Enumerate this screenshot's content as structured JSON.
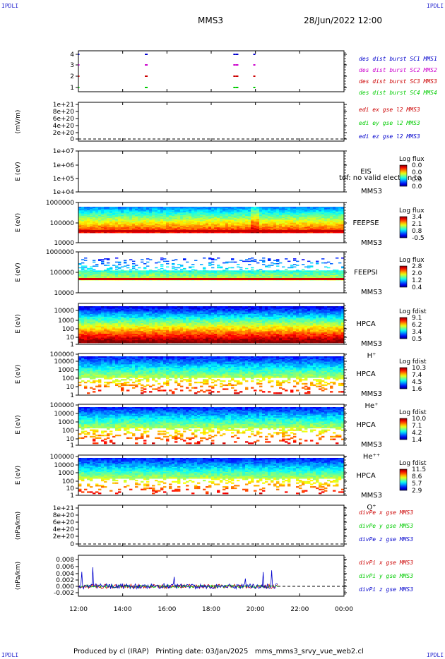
{
  "corner_text": "IPDLI",
  "header": {
    "title": "MMS3",
    "date": "28/Jun/2022 12:00"
  },
  "footer": "Produced by cl (IRAP)   Printing date: 03/Jan/2025   mms_mms3_srvy_vue_web2.cl",
  "x_axis": {
    "ticks": [
      "12:00",
      "14:00",
      "16:00",
      "18:00",
      "20:00",
      "22:00",
      "00:00"
    ]
  },
  "colors": {
    "blue": "#0000cc",
    "magenta": "#cc00cc",
    "red": "#cc0000",
    "green": "#00cc00"
  },
  "panels": [
    {
      "id": "des-dist",
      "ylabel": "",
      "yticks": [
        "4",
        "3",
        "2",
        "1"
      ],
      "legend": [
        {
          "text": "des dist burst SC1 MMS1",
          "color": "blue"
        },
        {
          "text": "des dist burst SC2 MMS2",
          "color": "magenta"
        },
        {
          "text": "des dist burst SC3 MMS3",
          "color": "red"
        },
        {
          "text": "des dist burst SC4 MMS4",
          "color": "green"
        }
      ]
    },
    {
      "id": "edi",
      "ylabel": "(mV/m)",
      "yticks": [
        "1e+21",
        "8e+20",
        "6e+20",
        "4e+20",
        "2e+20",
        "0"
      ],
      "legend": [
        {
          "text": "edi ex gse l2 MMS3",
          "color": "red"
        },
        {
          "text": "edi ey gse l2 MMS3",
          "color": "green"
        },
        {
          "text": "edi ez gse l2 MMS3",
          "color": "blue"
        }
      ]
    },
    {
      "id": "eis",
      "ylabel": "E (eV)",
      "yticks": [
        "1e+07",
        "1e+06",
        "1e+05",
        "1e+04"
      ],
      "instrument": [
        "EIS",
        "MMS3"
      ],
      "overlay": "tof: no valid electron to",
      "cb_title": "Log flux",
      "cb_ticks": [
        "0.0",
        "0.0",
        "0.0",
        "0.0"
      ]
    },
    {
      "id": "feepse",
      "ylabel": "E (eV)",
      "yticks": [
        "1000000",
        "100000",
        "10000"
      ],
      "instrument": [
        "FEEPSE",
        "MMS3"
      ],
      "cb_title": "Log flux",
      "cb_ticks": [
        "3.4",
        "2.1",
        "0.8",
        "-0.5"
      ]
    },
    {
      "id": "feepsi",
      "ylabel": "E (eV)",
      "yticks": [
        "1000000",
        "100000",
        "10000"
      ],
      "instrument": [
        "FEEPSI",
        "MMS3"
      ],
      "cb_title": "Log flux",
      "cb_ticks": [
        "2.8",
        "2.0",
        "1.2",
        "0.4"
      ]
    },
    {
      "id": "hpca-h",
      "ylabel": "E (eV)",
      "yticks": [
        "10000",
        "1000",
        "100",
        "10",
        "1"
      ],
      "instrument": [
        "HPCA",
        "MMS3"
      ],
      "species": "H⁺",
      "cb_title": "Log fdist",
      "cb_ticks": [
        "9.1",
        "6.2",
        "3.4",
        "0.5"
      ]
    },
    {
      "id": "hpca-he",
      "ylabel": "E (eV)",
      "yticks": [
        "100000",
        "10000",
        "1000",
        "100",
        "10",
        "1"
      ],
      "instrument": [
        "HPCA",
        "MMS3"
      ],
      "species": "He⁺",
      "cb_title": "Log fdist",
      "cb_ticks": [
        "10.3",
        "7.4",
        "4.5",
        "1.6"
      ]
    },
    {
      "id": "hpca-hepp",
      "ylabel": "E (eV)",
      "yticks": [
        "100000",
        "10000",
        "1000",
        "100",
        "10",
        "1"
      ],
      "instrument": [
        "HPCA",
        "MMS3"
      ],
      "species": "He⁺⁺",
      "cb_title": "Log fdist",
      "cb_ticks": [
        "10.0",
        "7.1",
        "4.2",
        "1.4"
      ]
    },
    {
      "id": "hpca-o",
      "ylabel": "E (eV)",
      "yticks": [
        "100000",
        "10000",
        "1000",
        "100",
        "10",
        "1"
      ],
      "instrument": [
        "HPCA",
        "MMS3"
      ],
      "species": "O⁺",
      "cb_title": "Log fdist",
      "cb_ticks": [
        "11.5",
        "8.6",
        "5.7",
        "2.9"
      ]
    },
    {
      "id": "divpe",
      "ylabel": "(nPa/km)",
      "yticks": [
        "1e+21",
        "8e+20",
        "6e+20",
        "4e+20",
        "2e+20",
        "0"
      ],
      "legend": [
        {
          "text": "divPe x gse MMS3",
          "color": "red"
        },
        {
          "text": "divPe y gse MMS3",
          "color": "green"
        },
        {
          "text": "divPe z gse MMS3",
          "color": "blue"
        }
      ]
    },
    {
      "id": "divpi",
      "ylabel": "(nPa/km)",
      "yticks": [
        "0.008",
        "0.006",
        "0.004",
        "0.002",
        "0.000",
        "-0.002"
      ],
      "legend": [
        {
          "text": "divPi x gse MMS3",
          "color": "red"
        },
        {
          "text": "divPi y gse MMS3",
          "color": "green"
        },
        {
          "text": "divPi z gse MMS3",
          "color": "blue"
        }
      ]
    }
  ],
  "chart_data": {
    "type": "heatmap",
    "x_range": [
      "12:00",
      "00:00"
    ],
    "burst_intervals": [
      {
        "sc": 1,
        "hours": [
          15.0,
          19.0,
          19.1,
          19.9
        ]
      },
      {
        "sc": 2,
        "hours": [
          15.0,
          19.0,
          19.1,
          19.9
        ]
      },
      {
        "sc": 3,
        "hours": [
          15.0,
          19.0,
          19.1,
          19.9
        ]
      },
      {
        "sc": 4,
        "hours": [
          15.0,
          19.0,
          19.1,
          19.9
        ]
      }
    ],
    "divpi_end_hour": 21.0
  }
}
